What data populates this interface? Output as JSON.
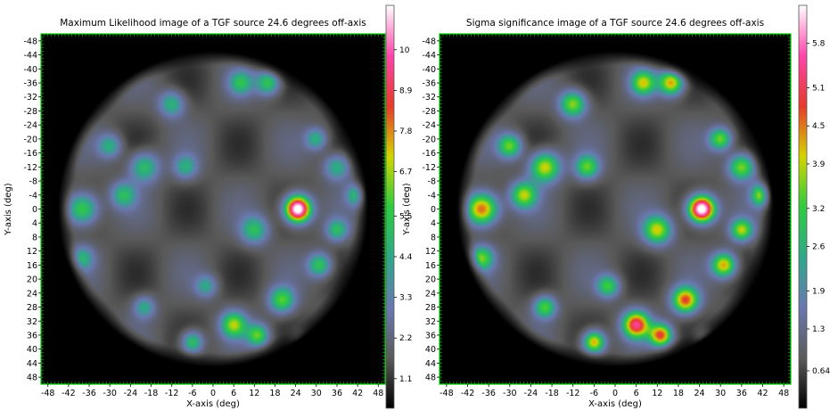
{
  "chart_data": [
    {
      "type": "heatmap",
      "title": "Maximum Likelihood image of a TGF source 24.6 degrees off-axis",
      "xlabel": "X-axis (deg)",
      "ylabel": "Y-axis (deg)",
      "xlim": [
        -50,
        50
      ],
      "ylim": [
        50,
        -50
      ],
      "x_ticks": [
        "-48",
        "-42",
        "-36",
        "-30",
        "-24",
        "-18",
        "-12",
        "-6",
        "0",
        "6",
        "12",
        "18",
        "24",
        "30",
        "36",
        "42",
        "48"
      ],
      "y_ticks": [
        "-48",
        "-44",
        "-40",
        "-36",
        "-32",
        "-28",
        "-24",
        "-20",
        "-16",
        "-12",
        "-8",
        "-4",
        "0",
        "4",
        "8",
        "12",
        "16",
        "20",
        "24",
        "28",
        "32",
        "36",
        "40",
        "44",
        "48"
      ],
      "colorbar": {
        "colormap": "black-gray-blue-green-yellow-red-pink-white",
        "ticks": [
          "1.1",
          "2.2",
          "3.3",
          "4.4",
          "5.5",
          "6.7",
          "7.8",
          "8.9",
          "10"
        ],
        "tick_values": [
          1.1,
          2.2,
          3.3,
          4.4,
          5.5,
          6.7,
          7.8,
          8.9,
          10
        ],
        "range": [
          0.3,
          11.2
        ]
      },
      "peak": {
        "x": 24.6,
        "y": 0,
        "value": 11
      }
    },
    {
      "type": "heatmap",
      "title": "Sigma significance image of a TGF source 24.6 degrees off-axis",
      "xlabel": "X-axis (deg)",
      "ylabel": "Y-axis (deg)",
      "xlim": [
        -50,
        50
      ],
      "ylim": [
        50,
        -50
      ],
      "x_ticks": [
        "-48",
        "-42",
        "-36",
        "-30",
        "-24",
        "-18",
        "-12",
        "-6",
        "0",
        "6",
        "12",
        "18",
        "24",
        "30",
        "36",
        "42",
        "48"
      ],
      "y_ticks": [
        "-48",
        "-44",
        "-40",
        "-36",
        "-32",
        "-28",
        "-24",
        "-20",
        "-16",
        "-12",
        "-8",
        "-4",
        "0",
        "4",
        "8",
        "12",
        "16",
        "20",
        "24",
        "28",
        "32",
        "36",
        "40",
        "44",
        "48"
      ],
      "colorbar": {
        "colormap": "black-gray-blue-green-yellow-red-pink-white",
        "ticks": [
          "0.64",
          "1.3",
          "1.9",
          "2.6",
          "3.2",
          "3.9",
          "4.5",
          "5.1",
          "5.8"
        ],
        "tick_values": [
          0.64,
          1.3,
          1.9,
          2.6,
          3.2,
          3.9,
          4.5,
          5.1,
          5.8
        ],
        "range": [
          0.05,
          6.4
        ]
      },
      "peak": {
        "x": 24.6,
        "y": 0,
        "value": 6.3
      }
    }
  ],
  "colors": {
    "background": "#000000",
    "frame": "#00cc00",
    "colormap_stops": [
      "#000000",
      "#5a5a5a",
      "#6a78b0",
      "#2ea88a",
      "#2ecc40",
      "#d4d400",
      "#e63a2a",
      "#ff44aa",
      "#ffffff"
    ]
  }
}
